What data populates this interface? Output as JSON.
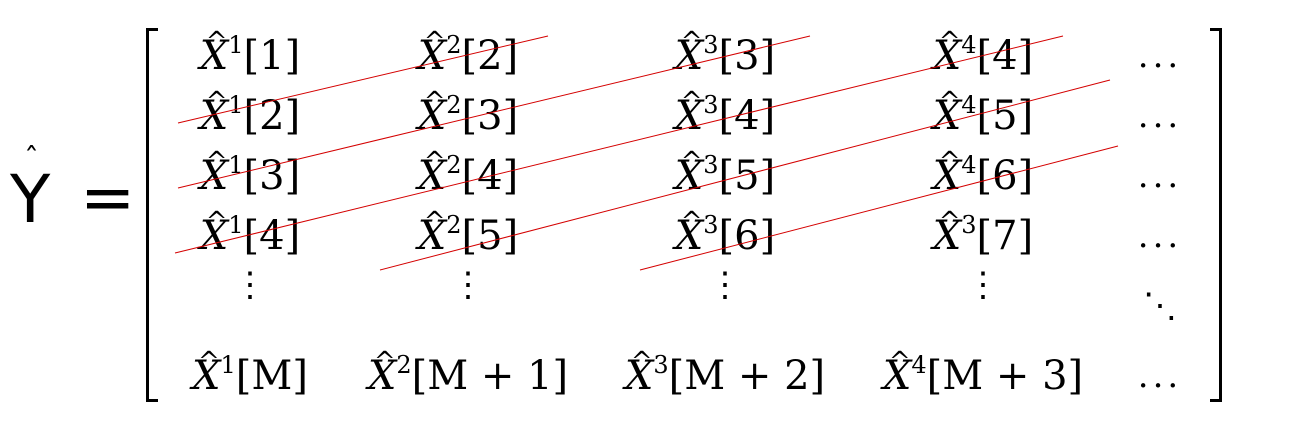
{
  "lhs": {
    "symbol": "Y",
    "hat": "ˆ",
    "equals": "="
  },
  "matrix": {
    "rows": [
      [
        {
          "sup": "1",
          "idx": "[1]"
        },
        {
          "sup": "2",
          "idx": "[2]"
        },
        {
          "sup": "3",
          "idx": "[3]"
        },
        {
          "sup": "4",
          "idx": "[4]"
        },
        {
          "text": "..."
        }
      ],
      [
        {
          "sup": "1",
          "idx": "[2]"
        },
        {
          "sup": "2",
          "idx": "[3]"
        },
        {
          "sup": "3",
          "idx": "[4]"
        },
        {
          "sup": "4",
          "idx": "[5]"
        },
        {
          "text": "..."
        }
      ],
      [
        {
          "sup": "1",
          "idx": "[3]"
        },
        {
          "sup": "2",
          "idx": "[4]"
        },
        {
          "sup": "3",
          "idx": "[5]"
        },
        {
          "sup": "4",
          "idx": "[6]"
        },
        {
          "text": "..."
        }
      ],
      [
        {
          "sup": "1",
          "idx": "[4]"
        },
        {
          "sup": "2",
          "idx": "[5]"
        },
        {
          "sup": "3",
          "idx": "[6]"
        },
        {
          "sup": "3",
          "idx": "[7]"
        },
        {
          "text": "..."
        }
      ],
      [
        {
          "text": "⋮"
        },
        {
          "text": "⋮"
        },
        {
          "text": "⋮"
        },
        {
          "text": "⋮"
        },
        {
          "text": "⋱"
        }
      ],
      [
        {
          "sup": "1",
          "idx": "[M]"
        },
        {
          "sup": "2",
          "idx": "[M + 1]"
        },
        {
          "sup": "3",
          "idx": "[M + 2]"
        },
        {
          "sup": "4",
          "idx": "[M + 3]"
        },
        {
          "text": "..."
        }
      ]
    ],
    "strike_color": "#d40000"
  }
}
